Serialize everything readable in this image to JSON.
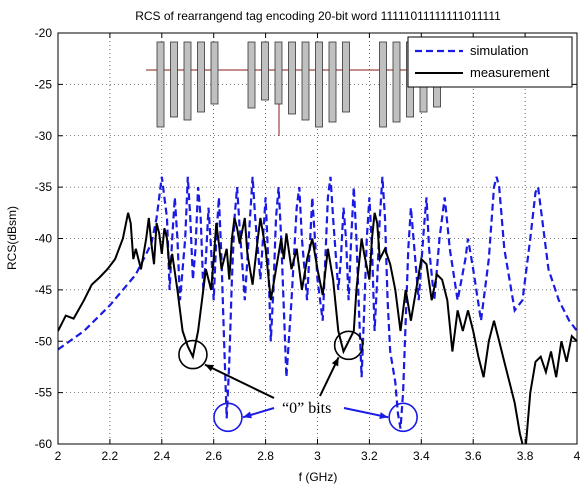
{
  "chart_data": {
    "type": "line",
    "title": "RCS of rearrangend tag encoding 20-bit word 11111011111111011111",
    "xlabel": "f (GHz)",
    "ylabel": "RCS(dBsm)",
    "xlim": [
      2,
      4
    ],
    "ylim": [
      -60,
      -20
    ],
    "xticks": [
      "2",
      "2.2",
      "2.4",
      "2.6",
      "2.8",
      "3",
      "3.2",
      "3.4",
      "3.6",
      "3.8",
      "4"
    ],
    "yticks": [
      "-20",
      "-25",
      "-30",
      "-35",
      "-40",
      "-45",
      "-50",
      "-55",
      "-60"
    ],
    "grid": true,
    "legend_position": "top-right",
    "series": [
      {
        "name": "simulation",
        "color": "#1a1ae6",
        "style": "dashed",
        "points": [
          [
            2.0,
            -50.8
          ],
          [
            2.1,
            -49.0
          ],
          [
            2.2,
            -46.5
          ],
          [
            2.3,
            -43.5
          ],
          [
            2.36,
            -40.5
          ],
          [
            2.38,
            -38.0
          ],
          [
            2.4,
            -34.0
          ],
          [
            2.42,
            -38.0
          ],
          [
            2.43,
            -45.0
          ],
          [
            2.44,
            -40.0
          ],
          [
            2.45,
            -36.0
          ],
          [
            2.46,
            -40.0
          ],
          [
            2.47,
            -46.0
          ],
          [
            2.49,
            -40.0
          ],
          [
            2.5,
            -34.0
          ],
          [
            2.51,
            -38.0
          ],
          [
            2.52,
            -44.0
          ],
          [
            2.53,
            -41.0
          ],
          [
            2.54,
            -35.0
          ],
          [
            2.55,
            -38.0
          ],
          [
            2.56,
            -45.0
          ],
          [
            2.57,
            -42.0
          ],
          [
            2.58,
            -37.0
          ],
          [
            2.59,
            -41.0
          ],
          [
            2.6,
            -46.0
          ],
          [
            2.61,
            -40.0
          ],
          [
            2.62,
            -36.0
          ],
          [
            2.63,
            -42.0
          ],
          [
            2.64,
            -50.0
          ],
          [
            2.65,
            -57.5
          ],
          [
            2.66,
            -52.0
          ],
          [
            2.67,
            -44.0
          ],
          [
            2.68,
            -38.0
          ],
          [
            2.69,
            -35.0
          ],
          [
            2.7,
            -39.0
          ],
          [
            2.72,
            -46.0
          ],
          [
            2.74,
            -38.0
          ],
          [
            2.75,
            -34.0
          ],
          [
            2.76,
            -38.0
          ],
          [
            2.78,
            -44.0
          ],
          [
            2.79,
            -40.0
          ],
          [
            2.8,
            -36.0
          ],
          [
            2.81,
            -42.0
          ],
          [
            2.82,
            -50.0
          ],
          [
            2.83,
            -45.0
          ],
          [
            2.84,
            -38.0
          ],
          [
            2.85,
            -35.0
          ],
          [
            2.86,
            -40.0
          ],
          [
            2.88,
            -53.5
          ],
          [
            2.9,
            -46.0
          ],
          [
            2.92,
            -37.0
          ],
          [
            2.93,
            -35.0
          ],
          [
            2.94,
            -40.0
          ],
          [
            2.96,
            -46.0
          ],
          [
            2.97,
            -41.0
          ],
          [
            2.98,
            -36.0
          ],
          [
            2.99,
            -40.0
          ],
          [
            3.0,
            -44.0
          ],
          [
            3.02,
            -48.0
          ],
          [
            3.03,
            -42.0
          ],
          [
            3.04,
            -36.0
          ],
          [
            3.05,
            -34.0
          ],
          [
            3.06,
            -38.0
          ],
          [
            3.08,
            -45.0
          ],
          [
            3.09,
            -42.0
          ],
          [
            3.1,
            -37.0
          ],
          [
            3.11,
            -40.0
          ],
          [
            3.12,
            -46.0
          ],
          [
            3.13,
            -40.0
          ],
          [
            3.14,
            -35.0
          ],
          [
            3.15,
            -40.0
          ],
          [
            3.16,
            -47.0
          ],
          [
            3.17,
            -53.5
          ],
          [
            3.18,
            -47.0
          ],
          [
            3.19,
            -40.0
          ],
          [
            3.2,
            -36.0
          ],
          [
            3.21,
            -41.0
          ],
          [
            3.22,
            -49.0
          ],
          [
            3.23,
            -44.0
          ],
          [
            3.24,
            -38.0
          ],
          [
            3.25,
            -34.0
          ],
          [
            3.26,
            -38.0
          ],
          [
            3.27,
            -46.0
          ],
          [
            3.28,
            -51.0
          ],
          [
            3.3,
            -54.0
          ],
          [
            3.31,
            -57.0
          ],
          [
            3.32,
            -58.5
          ],
          [
            3.33,
            -55.0
          ],
          [
            3.34,
            -48.0
          ],
          [
            3.35,
            -41.0
          ],
          [
            3.36,
            -37.0
          ],
          [
            3.37,
            -40.0
          ],
          [
            3.39,
            -46.0
          ],
          [
            3.41,
            -39.0
          ],
          [
            3.42,
            -36.0
          ],
          [
            3.43,
            -41.0
          ],
          [
            3.45,
            -46.0
          ],
          [
            3.47,
            -40.0
          ],
          [
            3.49,
            -36.0
          ],
          [
            3.51,
            -41.0
          ],
          [
            3.54,
            -46.0
          ],
          [
            3.57,
            -42.0
          ],
          [
            3.58,
            -40.0
          ],
          [
            3.6,
            -43.0
          ],
          [
            3.63,
            -48.0
          ],
          [
            3.66,
            -42.0
          ],
          [
            3.68,
            -35.0
          ],
          [
            3.69,
            -34.0
          ],
          [
            3.7,
            -35.0
          ],
          [
            3.72,
            -41.0
          ],
          [
            3.76,
            -47.0
          ],
          [
            3.79,
            -46.0
          ],
          [
            3.82,
            -40.0
          ],
          [
            3.84,
            -35.5
          ],
          [
            3.85,
            -35.0
          ],
          [
            3.86,
            -37.0
          ],
          [
            3.89,
            -43.0
          ],
          [
            3.93,
            -46.0
          ],
          [
            3.97,
            -48.0
          ],
          [
            4.0,
            -49.0
          ]
        ]
      },
      {
        "name": "measurement",
        "color": "#000000",
        "style": "solid",
        "points": [
          [
            2.0,
            -49.0
          ],
          [
            2.03,
            -47.5
          ],
          [
            2.06,
            -47.8
          ],
          [
            2.1,
            -46.0
          ],
          [
            2.13,
            -44.5
          ],
          [
            2.16,
            -43.8
          ],
          [
            2.19,
            -43.0
          ],
          [
            2.22,
            -42.0
          ],
          [
            2.25,
            -40.0
          ],
          [
            2.27,
            -37.5
          ],
          [
            2.28,
            -38.5
          ],
          [
            2.29,
            -42.0
          ],
          [
            2.3,
            -41.0
          ],
          [
            2.32,
            -43.0
          ],
          [
            2.34,
            -40.0
          ],
          [
            2.35,
            -38.0
          ],
          [
            2.36,
            -40.5
          ],
          [
            2.37,
            -42.5
          ],
          [
            2.38,
            -38.5
          ],
          [
            2.39,
            -39.5
          ],
          [
            2.4,
            -41.5
          ],
          [
            2.41,
            -39.0
          ],
          [
            2.42,
            -40.0
          ],
          [
            2.43,
            -43.0
          ],
          [
            2.44,
            -41.5
          ],
          [
            2.46,
            -45.0
          ],
          [
            2.48,
            -49.0
          ],
          [
            2.5,
            -50.5
          ],
          [
            2.52,
            -51.5
          ],
          [
            2.54,
            -49.0
          ],
          [
            2.56,
            -45.0
          ],
          [
            2.57,
            -43.0
          ],
          [
            2.59,
            -45.0
          ],
          [
            2.6,
            -42.0
          ],
          [
            2.61,
            -38.5
          ],
          [
            2.62,
            -40.5
          ],
          [
            2.63,
            -43.0
          ],
          [
            2.65,
            -41.0
          ],
          [
            2.66,
            -44.0
          ],
          [
            2.67,
            -40.0
          ],
          [
            2.68,
            -38.0
          ],
          [
            2.69,
            -39.0
          ],
          [
            2.7,
            -40.5
          ],
          [
            2.72,
            -38.0
          ],
          [
            2.73,
            -41.5
          ],
          [
            2.75,
            -44.5
          ],
          [
            2.77,
            -40.0
          ],
          [
            2.78,
            -38.0
          ],
          [
            2.8,
            -41.0
          ],
          [
            2.82,
            -46.0
          ],
          [
            2.84,
            -43.0
          ],
          [
            2.86,
            -40.0
          ],
          [
            2.87,
            -42.0
          ],
          [
            2.88,
            -39.5
          ],
          [
            2.9,
            -43.0
          ],
          [
            2.92,
            -41.0
          ],
          [
            2.94,
            -45.0
          ],
          [
            2.96,
            -42.0
          ],
          [
            2.98,
            -40.0
          ],
          [
            3.0,
            -43.0
          ],
          [
            3.02,
            -45.5
          ],
          [
            3.04,
            -41.0
          ],
          [
            3.06,
            -44.0
          ],
          [
            3.08,
            -49.0
          ],
          [
            3.1,
            -51.0
          ],
          [
            3.12,
            -50.0
          ],
          [
            3.14,
            -49.0
          ],
          [
            3.15,
            -45.0
          ],
          [
            3.16,
            -42.5
          ],
          [
            3.17,
            -40.0
          ],
          [
            3.18,
            -41.5
          ],
          [
            3.2,
            -44.0
          ],
          [
            3.21,
            -40.0
          ],
          [
            3.22,
            -37.5
          ],
          [
            3.23,
            -38.5
          ],
          [
            3.24,
            -42.0
          ],
          [
            3.26,
            -41.0
          ],
          [
            3.28,
            -42.5
          ],
          [
            3.3,
            -45.0
          ],
          [
            3.32,
            -49.0
          ],
          [
            3.34,
            -45.0
          ],
          [
            3.36,
            -48.0
          ],
          [
            3.38,
            -45.0
          ],
          [
            3.4,
            -42.0
          ],
          [
            3.42,
            -42.5
          ],
          [
            3.44,
            -46.0
          ],
          [
            3.46,
            -43.5
          ],
          [
            3.48,
            -44.0
          ],
          [
            3.5,
            -46.0
          ],
          [
            3.52,
            -51.0
          ],
          [
            3.54,
            -47.0
          ],
          [
            3.56,
            -49.0
          ],
          [
            3.58,
            -47.0
          ],
          [
            3.6,
            -49.0
          ],
          [
            3.62,
            -51.5
          ],
          [
            3.64,
            -53.5
          ],
          [
            3.66,
            -50.0
          ],
          [
            3.68,
            -48.0
          ],
          [
            3.7,
            -50.0
          ],
          [
            3.72,
            -52.0
          ],
          [
            3.74,
            -54.0
          ],
          [
            3.76,
            -56.0
          ],
          [
            3.78,
            -59.0
          ],
          [
            3.8,
            -61.0
          ],
          [
            3.81,
            -58.0
          ],
          [
            3.82,
            -55.0
          ],
          [
            3.84,
            -52.0
          ],
          [
            3.86,
            -51.5
          ],
          [
            3.88,
            -53.0
          ],
          [
            3.9,
            -51.0
          ],
          [
            3.92,
            -53.5
          ],
          [
            3.94,
            -50.0
          ],
          [
            3.96,
            -52.0
          ],
          [
            3.98,
            -49.5
          ],
          [
            4.0,
            -50.0
          ]
        ]
      }
    ],
    "annotations": {
      "text": "“0” bits",
      "color": "#1a1ae6",
      "markers": [
        {
          "x": 2.52,
          "y": -51.3,
          "color": "#000000"
        },
        {
          "x": 3.12,
          "y": -50.4,
          "color": "#000000"
        },
        {
          "x": 2.655,
          "y": -57.4,
          "color": "#1a1ae6"
        },
        {
          "x": 3.33,
          "y": -57.4,
          "color": "#1a1ae6"
        }
      ]
    },
    "inset": {
      "bits": "11111011111111011111",
      "fill": "#c0c0c0",
      "axis_color": "#8b1a1a"
    }
  }
}
